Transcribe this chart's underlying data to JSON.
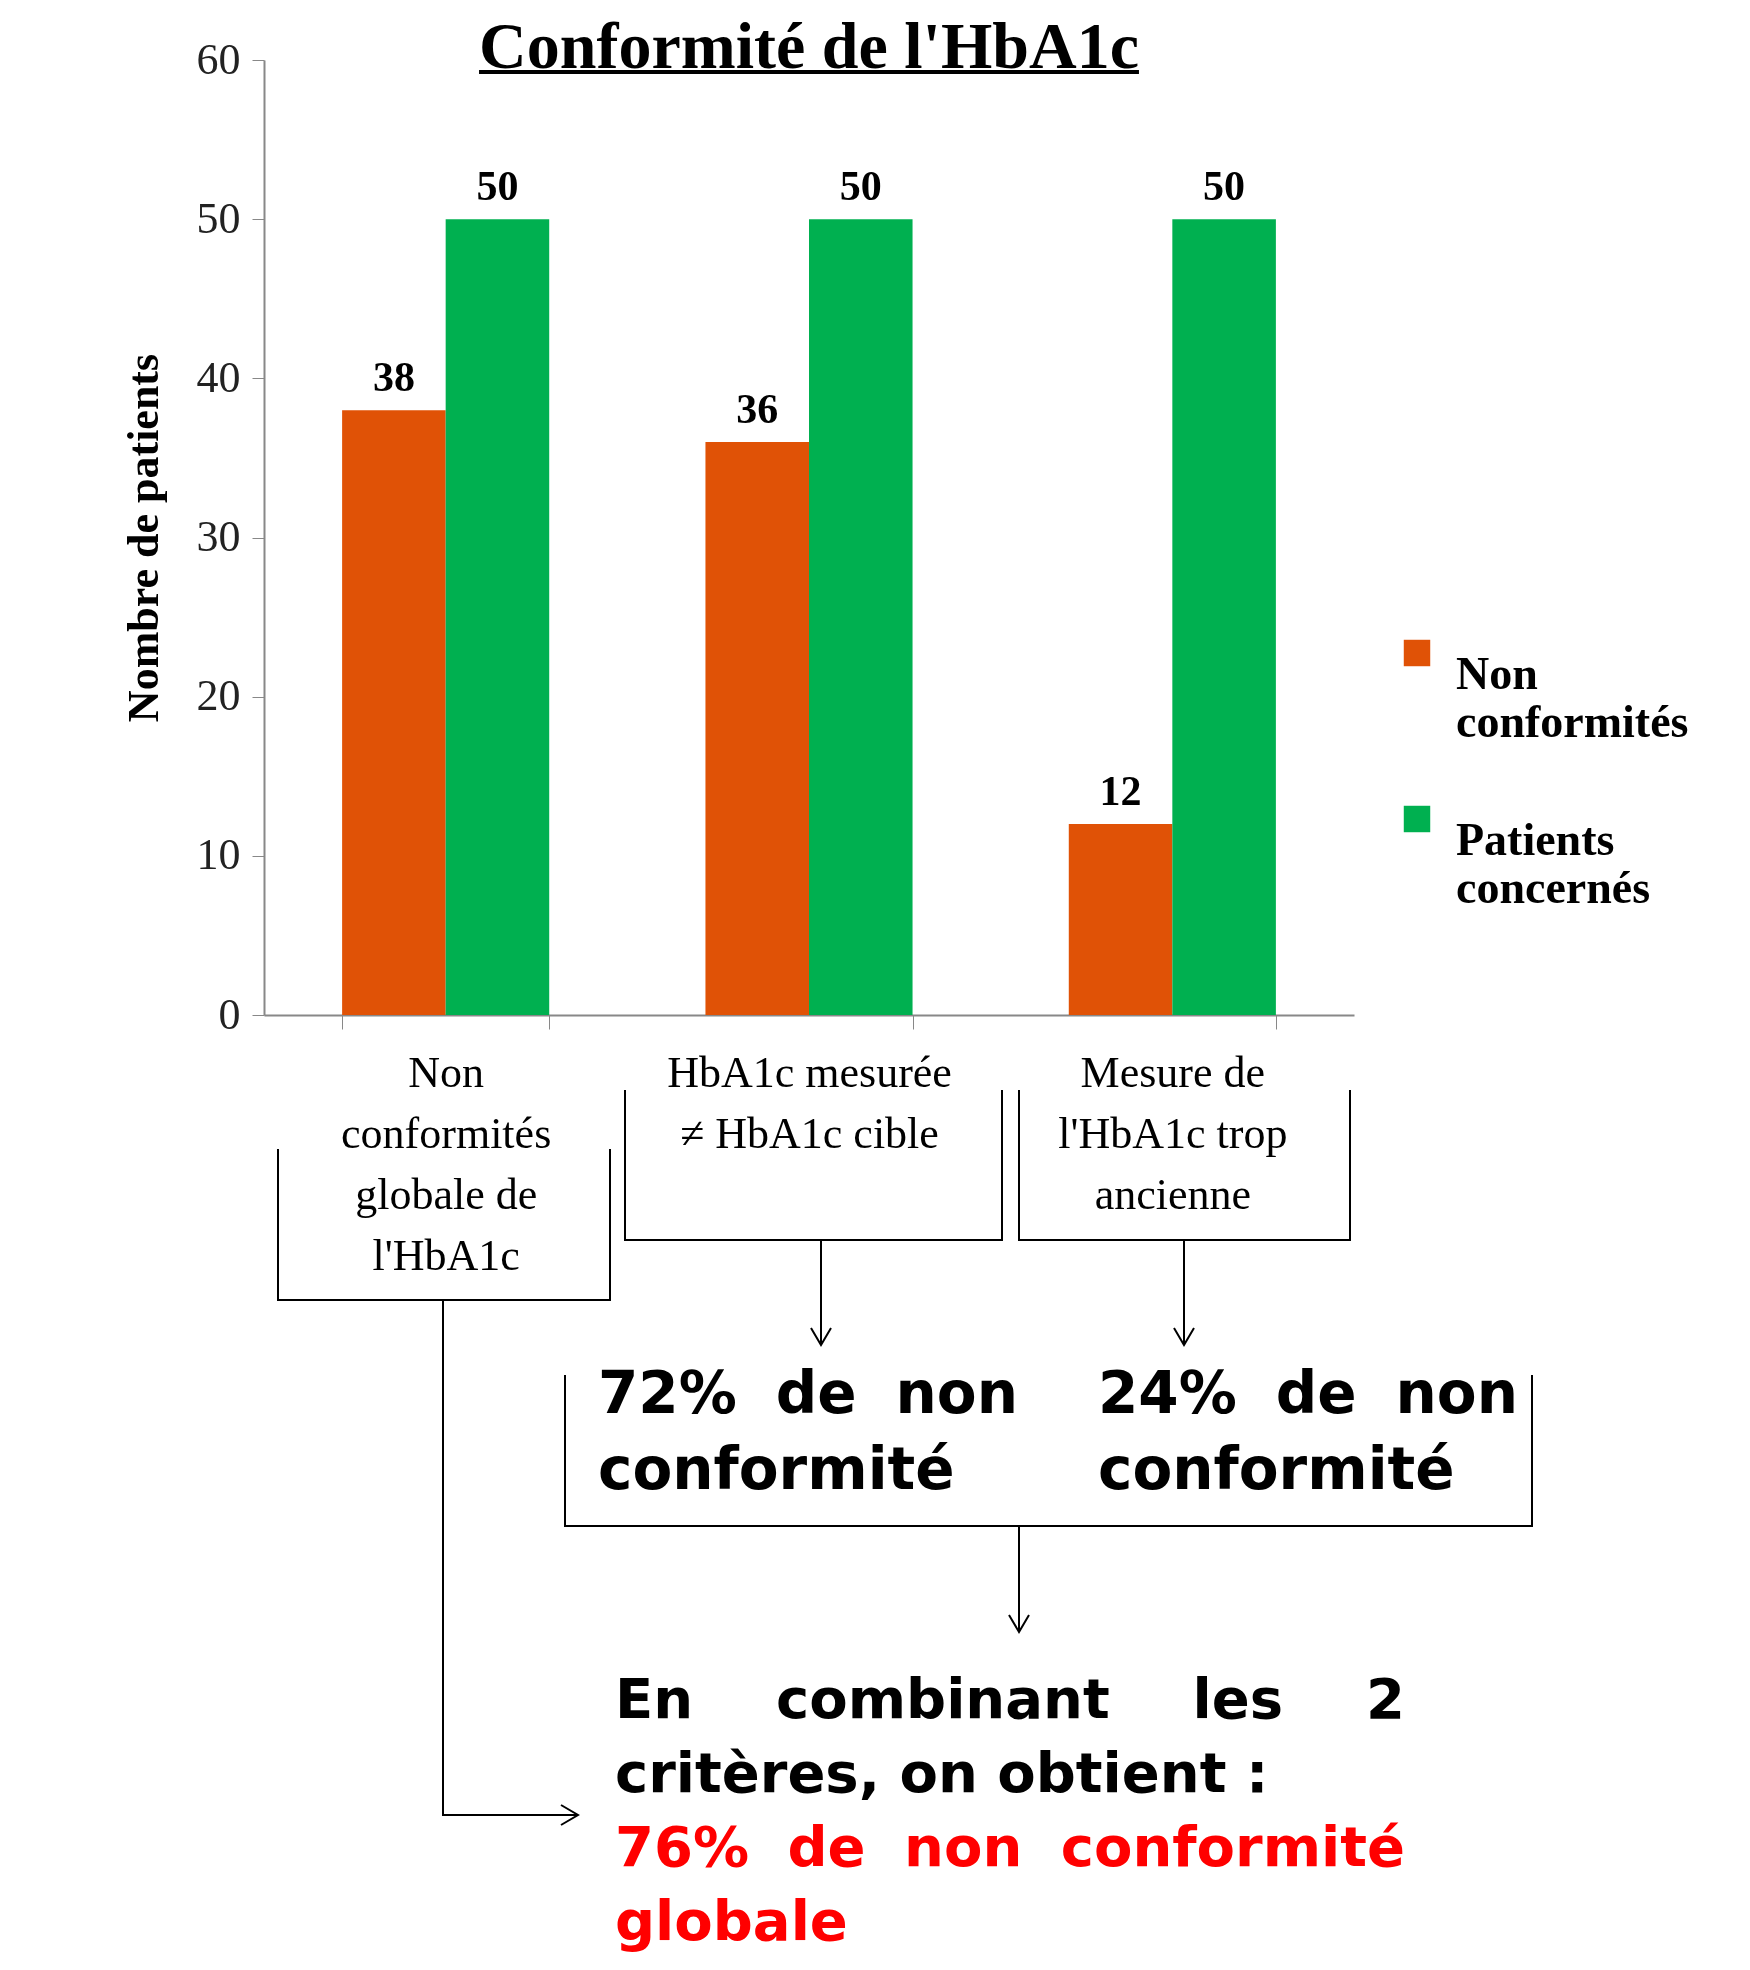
{
  "chart_data": {
    "type": "bar",
    "title": "Conformité de l'HbA1c",
    "ylabel": "Nombre de patients",
    "categories": [
      "Non conformités globale de l'HbA1c",
      "HbA1c mesurée ≠ HbA1c cible",
      "Mesure de l'HbA1c trop ancienne"
    ],
    "series": [
      {
        "name": "Non conformités",
        "color": "#e05206",
        "values": [
          38,
          36,
          12
        ]
      },
      {
        "name": "Patients concernés",
        "color": "#00b050",
        "values": [
          50,
          50,
          50
        ]
      }
    ],
    "ylim": [
      0,
      60
    ],
    "yticks": [
      0,
      10,
      20,
      30,
      40,
      50,
      60
    ],
    "grid": false,
    "legend": "right",
    "data_labels": true,
    "annotations": [
      "72% de non conformité",
      "24% de non conformité",
      "En combinant les 2 critères, on obtient :",
      "76% de non conformité globale"
    ]
  }
}
